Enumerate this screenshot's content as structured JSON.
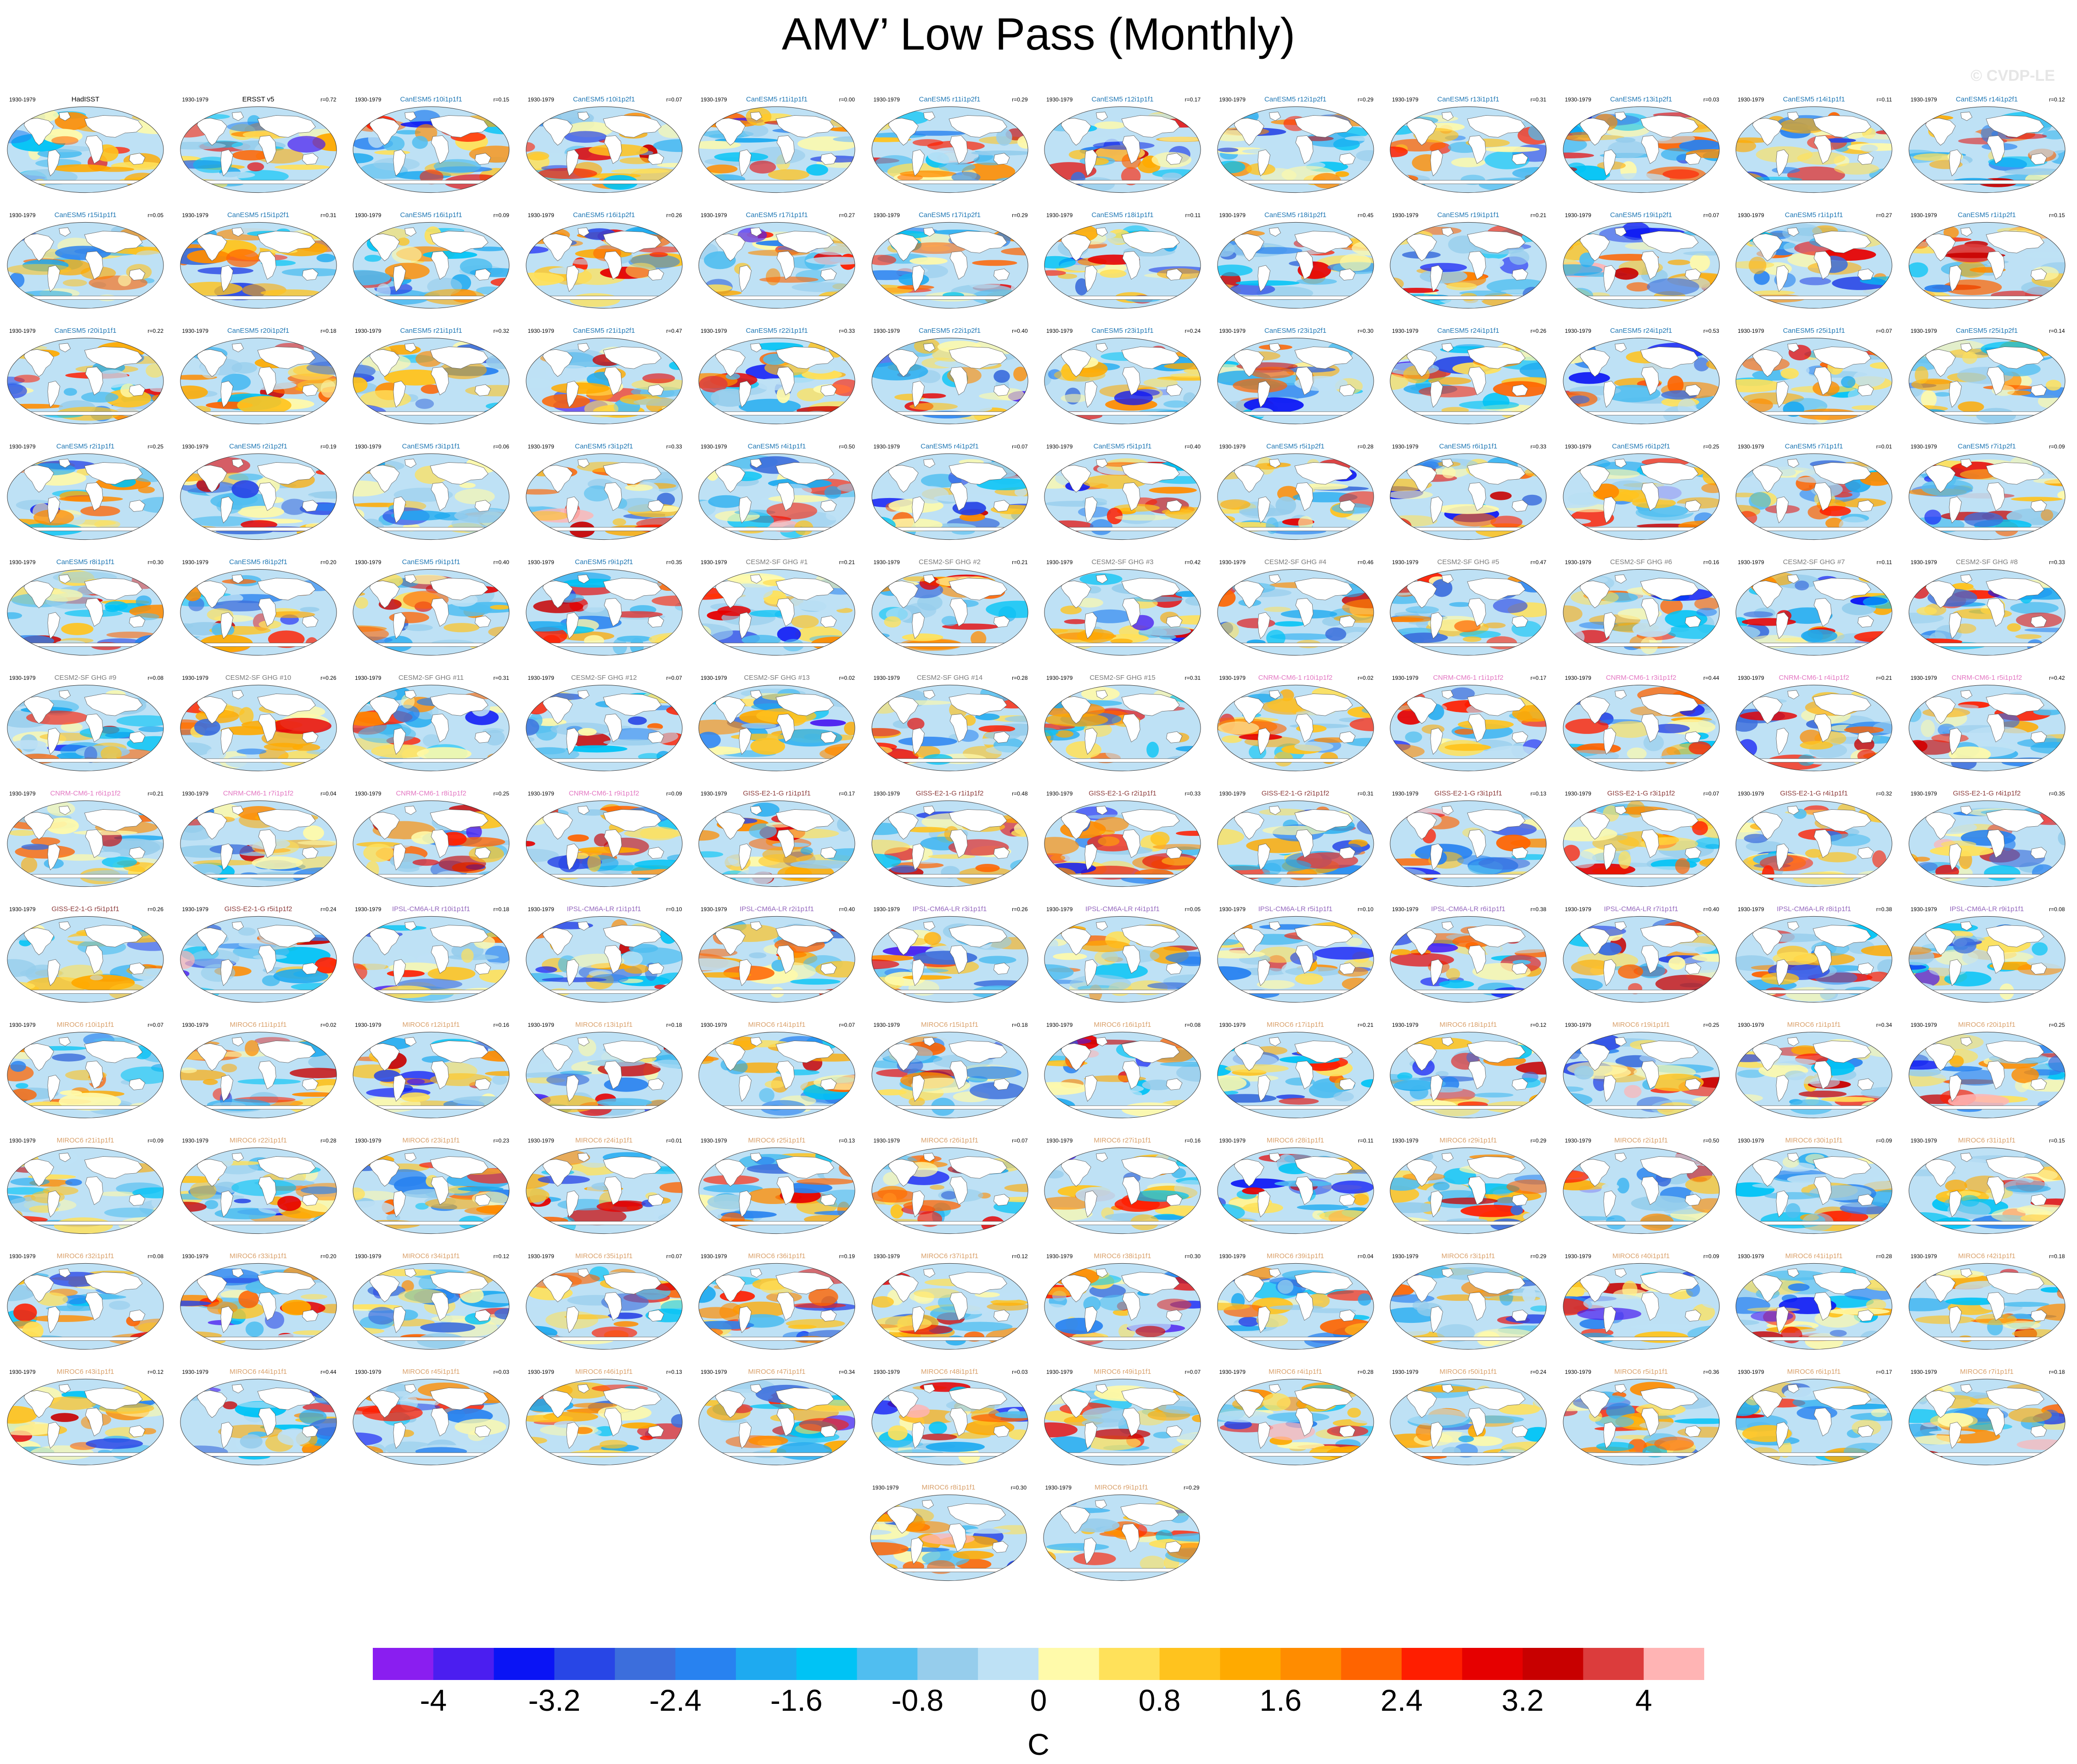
{
  "title": "AMV’ Low Pass (Monthly)",
  "watermark": "© CVDP-LE",
  "chart_data": {
    "type": "heatmap",
    "variable": "AMV’ Low Pass (Monthly)",
    "units": "C",
    "colorbar": {
      "levels": [
        "-4",
        "-3.2",
        "-2.4",
        "-1.6",
        "-0.8",
        "0",
        "0.8",
        "1.6",
        "2.4",
        "3.2",
        "4"
      ],
      "colors": [
        "#8a1ef0",
        "#4b1ef0",
        "#0a14f5",
        "#2846e6",
        "#3c6edc",
        "#2882f0",
        "#1eaaf0",
        "#00c3f5",
        "#50bef0",
        "#96cdec",
        "#bee1f5",
        "#fffaaa",
        "#ffe15a",
        "#ffc31e",
        "#ffaa00",
        "#ff8c00",
        "#ff6400",
        "#ff1e00",
        "#e60000",
        "#c80000",
        "#dc3c3c",
        "#ffb4b4"
      ]
    },
    "period": "1930-1979",
    "panels": [
      {
        "name": "HadISST",
        "r": ""
      },
      {
        "name": "ERSST v5",
        "r": "r=0.72"
      },
      {
        "name": "CanESM5 r10i1p1f1",
        "r": "r=0.15"
      },
      {
        "name": "CanESM5 r10i1p2f1",
        "r": "r=0.07"
      },
      {
        "name": "CanESM5 r11i1p1f1",
        "r": "r=0.00"
      },
      {
        "name": "CanESM5 r11i1p2f1",
        "r": "r=0.29"
      },
      {
        "name": "CanESM5 r12i1p1f1",
        "r": "r=0.17"
      },
      {
        "name": "CanESM5 r12i1p2f1",
        "r": "r=0.29"
      },
      {
        "name": "CanESM5 r13i1p1f1",
        "r": "r=0.31"
      },
      {
        "name": "CanESM5 r13i1p2f1",
        "r": "r=0.03"
      },
      {
        "name": "CanESM5 r14i1p1f1",
        "r": "r=0.11"
      },
      {
        "name": "CanESM5 r14i1p2f1",
        "r": "r=0.12"
      },
      {
        "name": "CanESM5 r15i1p1f1",
        "r": "r=0.05"
      },
      {
        "name": "CanESM5 r15i1p2f1",
        "r": "r=0.31"
      },
      {
        "name": "CanESM5 r16i1p1f1",
        "r": "r=0.09"
      },
      {
        "name": "CanESM5 r16i1p2f1",
        "r": "r=0.26"
      },
      {
        "name": "CanESM5 r17i1p1f1",
        "r": "r=0.27"
      },
      {
        "name": "CanESM5 r17i1p2f1",
        "r": "r=0.29"
      },
      {
        "name": "CanESM5 r18i1p1f1",
        "r": "r=0.11"
      },
      {
        "name": "CanESM5 r18i1p2f1",
        "r": "r=0.45"
      },
      {
        "name": "CanESM5 r19i1p1f1",
        "r": "r=0.21"
      },
      {
        "name": "CanESM5 r19i1p2f1",
        "r": "r=0.07"
      },
      {
        "name": "CanESM5 r1i1p1f1",
        "r": "r=0.27"
      },
      {
        "name": "CanESM5 r1i1p2f1",
        "r": "r=0.15"
      },
      {
        "name": "CanESM5 r20i1p1f1",
        "r": "r=0.22"
      },
      {
        "name": "CanESM5 r20i1p2f1",
        "r": "r=0.18"
      },
      {
        "name": "CanESM5 r21i1p1f1",
        "r": "r=0.32"
      },
      {
        "name": "CanESM5 r21i1p2f1",
        "r": "r=0.47"
      },
      {
        "name": "CanESM5 r22i1p1f1",
        "r": "r=0.33"
      },
      {
        "name": "CanESM5 r22i1p2f1",
        "r": "r=0.40"
      },
      {
        "name": "CanESM5 r23i1p1f1",
        "r": "r=0.24"
      },
      {
        "name": "CanESM5 r23i1p2f1",
        "r": "r=0.30"
      },
      {
        "name": "CanESM5 r24i1p1f1",
        "r": "r=0.26"
      },
      {
        "name": "CanESM5 r24i1p2f1",
        "r": "r=0.53"
      },
      {
        "name": "CanESM5 r25i1p1f1",
        "r": "r=0.07"
      },
      {
        "name": "CanESM5 r25i1p2f1",
        "r": "r=0.14"
      },
      {
        "name": "CanESM5 r2i1p1f1",
        "r": "r=0.25"
      },
      {
        "name": "CanESM5 r2i1p2f1",
        "r": "r=0.19"
      },
      {
        "name": "CanESM5 r3i1p1f1",
        "r": "r=0.06"
      },
      {
        "name": "CanESM5 r3i1p2f1",
        "r": "r=0.33"
      },
      {
        "name": "CanESM5 r4i1p1f1",
        "r": "r=0.50"
      },
      {
        "name": "CanESM5 r4i1p2f1",
        "r": "r=0.07"
      },
      {
        "name": "CanESM5 r5i1p1f1",
        "r": "r=0.40"
      },
      {
        "name": "CanESM5 r5i1p2f1",
        "r": "r=0.28"
      },
      {
        "name": "CanESM5 r6i1p1f1",
        "r": "r=0.33"
      },
      {
        "name": "CanESM5 r6i1p2f1",
        "r": "r=0.25"
      },
      {
        "name": "CanESM5 r7i1p1f1",
        "r": "r=0.01"
      },
      {
        "name": "CanESM5 r7i1p2f1",
        "r": "r=0.09"
      },
      {
        "name": "CanESM5 r8i1p1f1",
        "r": "r=0.30"
      },
      {
        "name": "CanESM5 r8i1p2f1",
        "r": "r=0.20"
      },
      {
        "name": "CanESM5 r9i1p1f1",
        "r": "r=0.40"
      },
      {
        "name": "CanESM5 r9i1p2f1",
        "r": "r=0.35"
      },
      {
        "name": "CESM2-SF GHG #1",
        "r": "r=0.21"
      },
      {
        "name": "CESM2-SF GHG #2",
        "r": "r=0.21"
      },
      {
        "name": "CESM2-SF GHG #3",
        "r": "r=0.42"
      },
      {
        "name": "CESM2-SF GHG #4",
        "r": "r=0.46"
      },
      {
        "name": "CESM2-SF GHG #5",
        "r": "r=0.47"
      },
      {
        "name": "CESM2-SF GHG #6",
        "r": "r=0.16"
      },
      {
        "name": "CESM2-SF GHG #7",
        "r": "r=0.11"
      },
      {
        "name": "CESM2-SF GHG #8",
        "r": "r=0.33"
      },
      {
        "name": "CESM2-SF GHG #9",
        "r": "r=0.08"
      },
      {
        "name": "CESM2-SF GHG #10",
        "r": "r=0.26"
      },
      {
        "name": "CESM2-SF GHG #11",
        "r": "r=0.31"
      },
      {
        "name": "CESM2-SF GHG #12",
        "r": "r=0.07"
      },
      {
        "name": "CESM2-SF GHG #13",
        "r": "r=0.02"
      },
      {
        "name": "CESM2-SF GHG #14",
        "r": "r=0.28"
      },
      {
        "name": "CESM2-SF GHG #15",
        "r": "r=0.31"
      },
      {
        "name": "CNRM-CM6-1 r10i1p1f2",
        "r": "r=0.02"
      },
      {
        "name": "CNRM-CM6-1 r1i1p1f2",
        "r": "r=0.17"
      },
      {
        "name": "CNRM-CM6-1 r3i1p1f2",
        "r": "r=0.44"
      },
      {
        "name": "CNRM-CM6-1 r4i1p1f2",
        "r": "r=0.21"
      },
      {
        "name": "CNRM-CM6-1 r5i1p1f2",
        "r": "r=0.42"
      },
      {
        "name": "CNRM-CM6-1 r6i1p1f2",
        "r": "r=0.21"
      },
      {
        "name": "CNRM-CM6-1 r7i1p1f2",
        "r": "r=0.04"
      },
      {
        "name": "CNRM-CM6-1 r8i1p1f2",
        "r": "r=0.25"
      },
      {
        "name": "CNRM-CM6-1 r9i1p1f2",
        "r": "r=0.09"
      },
      {
        "name": "GISS-E2-1-G r1i1p1f1",
        "r": "r=0.17"
      },
      {
        "name": "GISS-E2-1-G r1i1p1f2",
        "r": "r=0.48"
      },
      {
        "name": "GISS-E2-1-G r2i1p1f1",
        "r": "r=0.33"
      },
      {
        "name": "GISS-E2-1-G r2i1p1f2",
        "r": "r=0.31"
      },
      {
        "name": "GISS-E2-1-G r3i1p1f1",
        "r": "r=0.13"
      },
      {
        "name": "GISS-E2-1-G r3i1p1f2",
        "r": "r=0.07"
      },
      {
        "name": "GISS-E2-1-G r4i1p1f1",
        "r": "r=0.32"
      },
      {
        "name": "GISS-E2-1-G r4i1p1f2",
        "r": "r=0.35"
      },
      {
        "name": "GISS-E2-1-G r5i1p1f1",
        "r": "r=0.26"
      },
      {
        "name": "GISS-E2-1-G r5i1p1f2",
        "r": "r=0.24"
      },
      {
        "name": "IPSL-CM6A-LR r10i1p1f1",
        "r": "r=0.18"
      },
      {
        "name": "IPSL-CM6A-LR r1i1p1f1",
        "r": "r=0.10"
      },
      {
        "name": "IPSL-CM6A-LR r2i1p1f1",
        "r": "r=0.40"
      },
      {
        "name": "IPSL-CM6A-LR r3i1p1f1",
        "r": "r=0.26"
      },
      {
        "name": "IPSL-CM6A-LR r4i1p1f1",
        "r": "r=0.05"
      },
      {
        "name": "IPSL-CM6A-LR r5i1p1f1",
        "r": "r=0.10"
      },
      {
        "name": "IPSL-CM6A-LR r6i1p1f1",
        "r": "r=0.38"
      },
      {
        "name": "IPSL-CM6A-LR r7i1p1f1",
        "r": "r=0.40"
      },
      {
        "name": "IPSL-CM6A-LR r8i1p1f1",
        "r": "r=0.38"
      },
      {
        "name": "IPSL-CM6A-LR r9i1p1f1",
        "r": "r=0.08"
      },
      {
        "name": "MIROC6 r10i1p1f1",
        "r": "r=0.07"
      },
      {
        "name": "MIROC6 r11i1p1f1",
        "r": "r=0.02"
      },
      {
        "name": "MIROC6 r12i1p1f1",
        "r": "r=0.16"
      },
      {
        "name": "MIROC6 r13i1p1f1",
        "r": "r=0.18"
      },
      {
        "name": "MIROC6 r14i1p1f1",
        "r": "r=0.07"
      },
      {
        "name": "MIROC6 r15i1p1f1",
        "r": "r=0.18"
      },
      {
        "name": "MIROC6 r16i1p1f1",
        "r": "r=0.08"
      },
      {
        "name": "MIROC6 r17i1p1f1",
        "r": "r=0.21"
      },
      {
        "name": "MIROC6 r18i1p1f1",
        "r": "r=0.12"
      },
      {
        "name": "MIROC6 r19i1p1f1",
        "r": "r=0.25"
      },
      {
        "name": "MIROC6 r1i1p1f1",
        "r": "r=0.34"
      },
      {
        "name": "MIROC6 r20i1p1f1",
        "r": "r=0.25"
      },
      {
        "name": "MIROC6 r21i1p1f1",
        "r": "r=0.09"
      },
      {
        "name": "MIROC6 r22i1p1f1",
        "r": "r=0.28"
      },
      {
        "name": "MIROC6 r23i1p1f1",
        "r": "r=0.23"
      },
      {
        "name": "MIROC6 r24i1p1f1",
        "r": "r=0.01"
      },
      {
        "name": "MIROC6 r25i1p1f1",
        "r": "r=0.13"
      },
      {
        "name": "MIROC6 r26i1p1f1",
        "r": "r=0.07"
      },
      {
        "name": "MIROC6 r27i1p1f1",
        "r": "r=0.16"
      },
      {
        "name": "MIROC6 r28i1p1f1",
        "r": "r=0.11"
      },
      {
        "name": "MIROC6 r29i1p1f1",
        "r": "r=0.29"
      },
      {
        "name": "MIROC6 r2i1p1f1",
        "r": "r=0.50"
      },
      {
        "name": "MIROC6 r30i1p1f1",
        "r": "r=0.09"
      },
      {
        "name": "MIROC6 r31i1p1f1",
        "r": "r=0.15"
      },
      {
        "name": "MIROC6 r32i1p1f1",
        "r": "r=0.08"
      },
      {
        "name": "MIROC6 r33i1p1f1",
        "r": "r=0.20"
      },
      {
        "name": "MIROC6 r34i1p1f1",
        "r": "r=0.12"
      },
      {
        "name": "MIROC6 r35i1p1f1",
        "r": "r=0.07"
      },
      {
        "name": "MIROC6 r36i1p1f1",
        "r": "r=0.19"
      },
      {
        "name": "MIROC6 r37i1p1f1",
        "r": "r=0.12"
      },
      {
        "name": "MIROC6 r38i1p1f1",
        "r": "r=0.30"
      },
      {
        "name": "MIROC6 r39i1p1f1",
        "r": "r=0.04"
      },
      {
        "name": "MIROC6 r3i1p1f1",
        "r": "r=0.29"
      },
      {
        "name": "MIROC6 r40i1p1f1",
        "r": "r=0.09"
      },
      {
        "name": "MIROC6 r41i1p1f1",
        "r": "r=0.28"
      },
      {
        "name": "MIROC6 r42i1p1f1",
        "r": "r=0.18"
      },
      {
        "name": "MIROC6 r43i1p1f1",
        "r": "r=0.12"
      },
      {
        "name": "MIROC6 r44i1p1f1",
        "r": "r=0.44"
      },
      {
        "name": "MIROC6 r45i1p1f1",
        "r": "r=0.03"
      },
      {
        "name": "MIROC6 r46i1p1f1",
        "r": "r=0.13"
      },
      {
        "name": "MIROC6 r47i1p1f1",
        "r": "r=0.34"
      },
      {
        "name": "MIROC6 r48i1p1f1",
        "r": "r=0.03"
      },
      {
        "name": "MIROC6 r49i1p1f1",
        "r": "r=0.07"
      },
      {
        "name": "MIROC6 r4i1p1f1",
        "r": "r=0.28"
      },
      {
        "name": "MIROC6 r50i1p1f1",
        "r": "r=0.24"
      },
      {
        "name": "MIROC6 r5i1p1f1",
        "r": "r=0.36"
      },
      {
        "name": "MIROC6 r6i1p1f1",
        "r": "r=0.17"
      },
      {
        "name": "MIROC6 r7i1p1f1",
        "r": "r=0.18"
      },
      {
        "name": "MIROC6 r8i1p1f1",
        "r": "r=0.30"
      },
      {
        "name": "MIROC6 r9i1p1f1",
        "r": "r=0.29"
      }
    ],
    "title_colors": {
      "HadISST": "#000000",
      "ERSST": "#000000",
      "CanESM5": "#1f77b4",
      "CESM2-SF": "#7a7a7a",
      "CNRM-CM6-1": "#e377c2",
      "GISS-E2-1-G": "#8c3b3b",
      "IPSL-CM6A-LR": "#9467bd",
      "MIROC6": "#d9a06a"
    }
  }
}
